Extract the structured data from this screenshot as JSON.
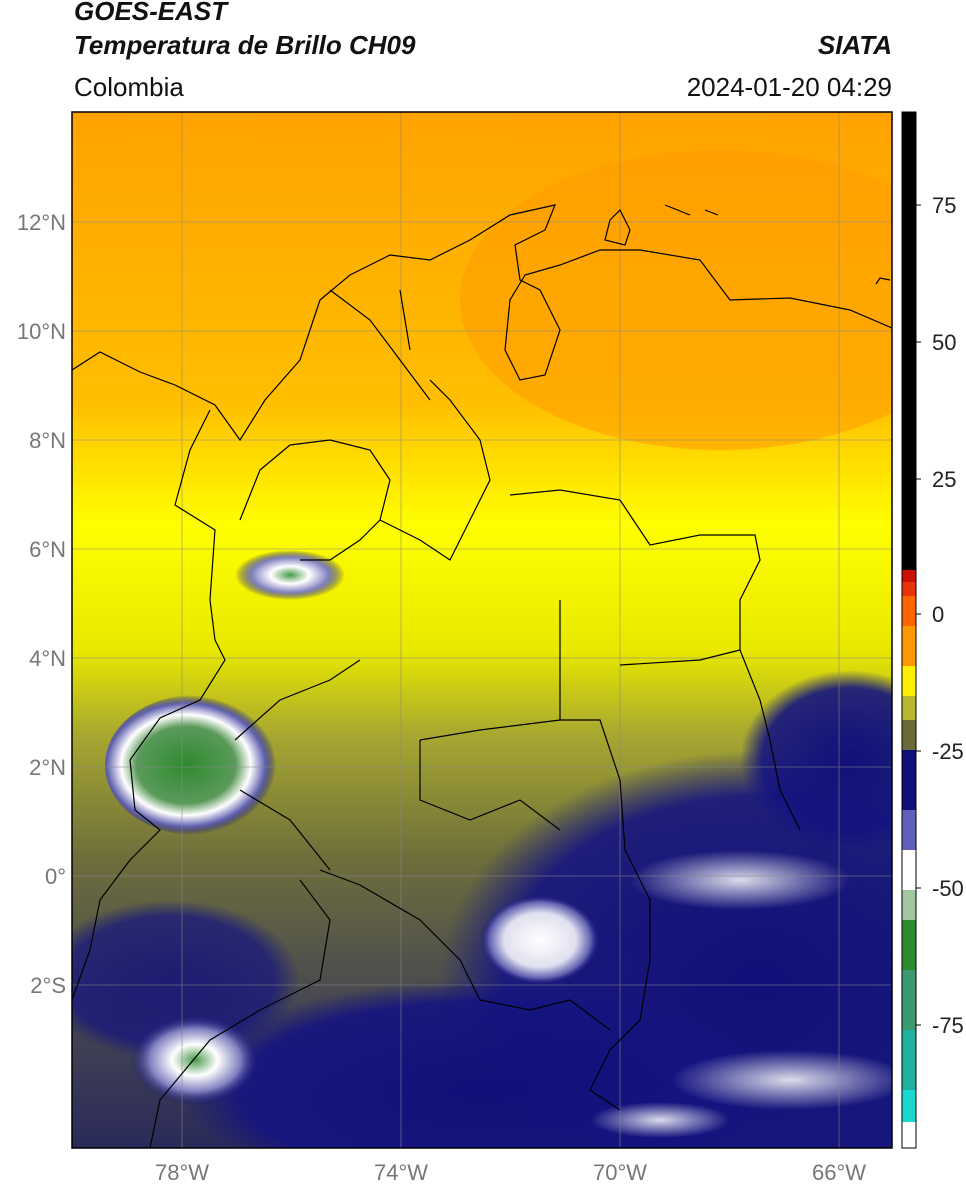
{
  "header": {
    "satellite": "GOES-EAST",
    "product": "Temperatura de Brillo CH09",
    "organization": "SIATA",
    "region": "Colombia",
    "datetime": "2024-01-20 04:29"
  },
  "map": {
    "lat_labels": [
      "12°N",
      "10°N",
      "8°N",
      "6°N",
      "4°N",
      "2°N",
      "0°",
      "2°S"
    ],
    "lon_labels": [
      "78°W",
      "74°W",
      "70°W",
      "66°W"
    ],
    "extent": {
      "lon": [
        -80,
        -65
      ],
      "lat": [
        -5,
        14
      ]
    }
  },
  "colorbar": {
    "tick_labels": [
      "75",
      "50",
      "25",
      "0",
      "-25",
      "-50",
      "-75"
    ],
    "range": [
      -97,
      90
    ],
    "colors": {
      "black": "#000000",
      "red": "#e8220a",
      "orange": "#ffa500",
      "yellow": "#ffff00",
      "olive": "#6b6b3a",
      "navy": "#10107a",
      "white": "#ffffff",
      "green": "#2e8a2e",
      "cyan": "#18d8d0"
    }
  }
}
